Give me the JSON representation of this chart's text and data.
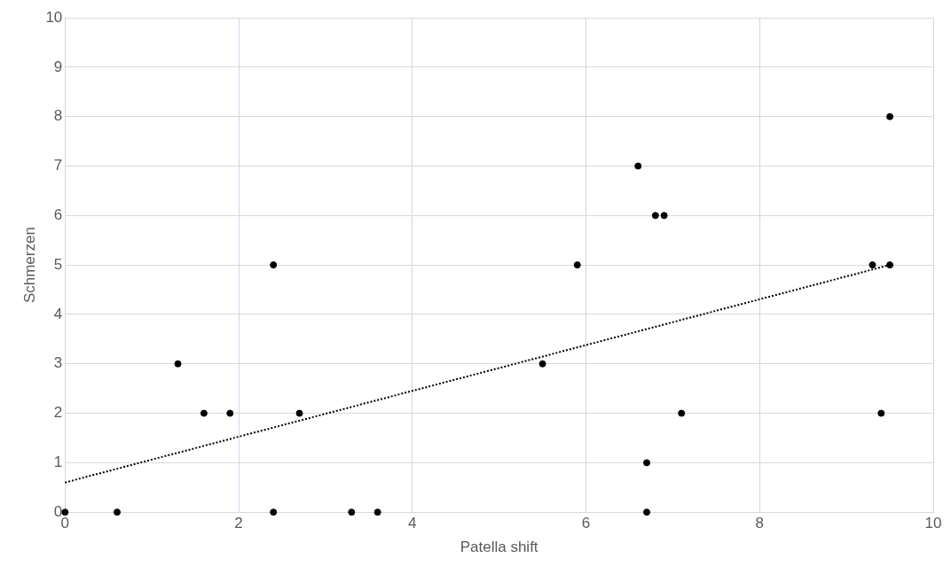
{
  "chart_data": {
    "type": "scatter",
    "xlabel": "Patella shift",
    "ylabel": "Schmerzen",
    "xlim": [
      0,
      10
    ],
    "ylim": [
      0,
      10
    ],
    "xticks": [
      0,
      2,
      4,
      6,
      8,
      10
    ],
    "yticks": [
      0,
      1,
      2,
      3,
      4,
      5,
      6,
      7,
      8,
      9,
      10
    ],
    "grid": true,
    "legend": false,
    "series": [
      {
        "type": "scatter",
        "color": "#000000",
        "marker": "circle",
        "x": [
          0,
          0.6,
          1.3,
          1.6,
          1.9,
          2.4,
          2.4,
          2.7,
          3.3,
          3.6,
          5.5,
          5.9,
          6.6,
          6.8,
          6.9,
          7.1,
          6.7,
          6.7,
          9.3,
          9.5,
          9.5,
          9.4
        ],
        "values": [
          0,
          0,
          3,
          2,
          2,
          5,
          0,
          2,
          0,
          0,
          3,
          5,
          7,
          6,
          6,
          2,
          1,
          0,
          5,
          8,
          5,
          2
        ]
      },
      {
        "type": "line",
        "color": "#000000",
        "marker": "none",
        "line_style": "dotted",
        "x": [
          0,
          9.5
        ],
        "values": [
          0.6,
          5.0
        ]
      }
    ]
  }
}
